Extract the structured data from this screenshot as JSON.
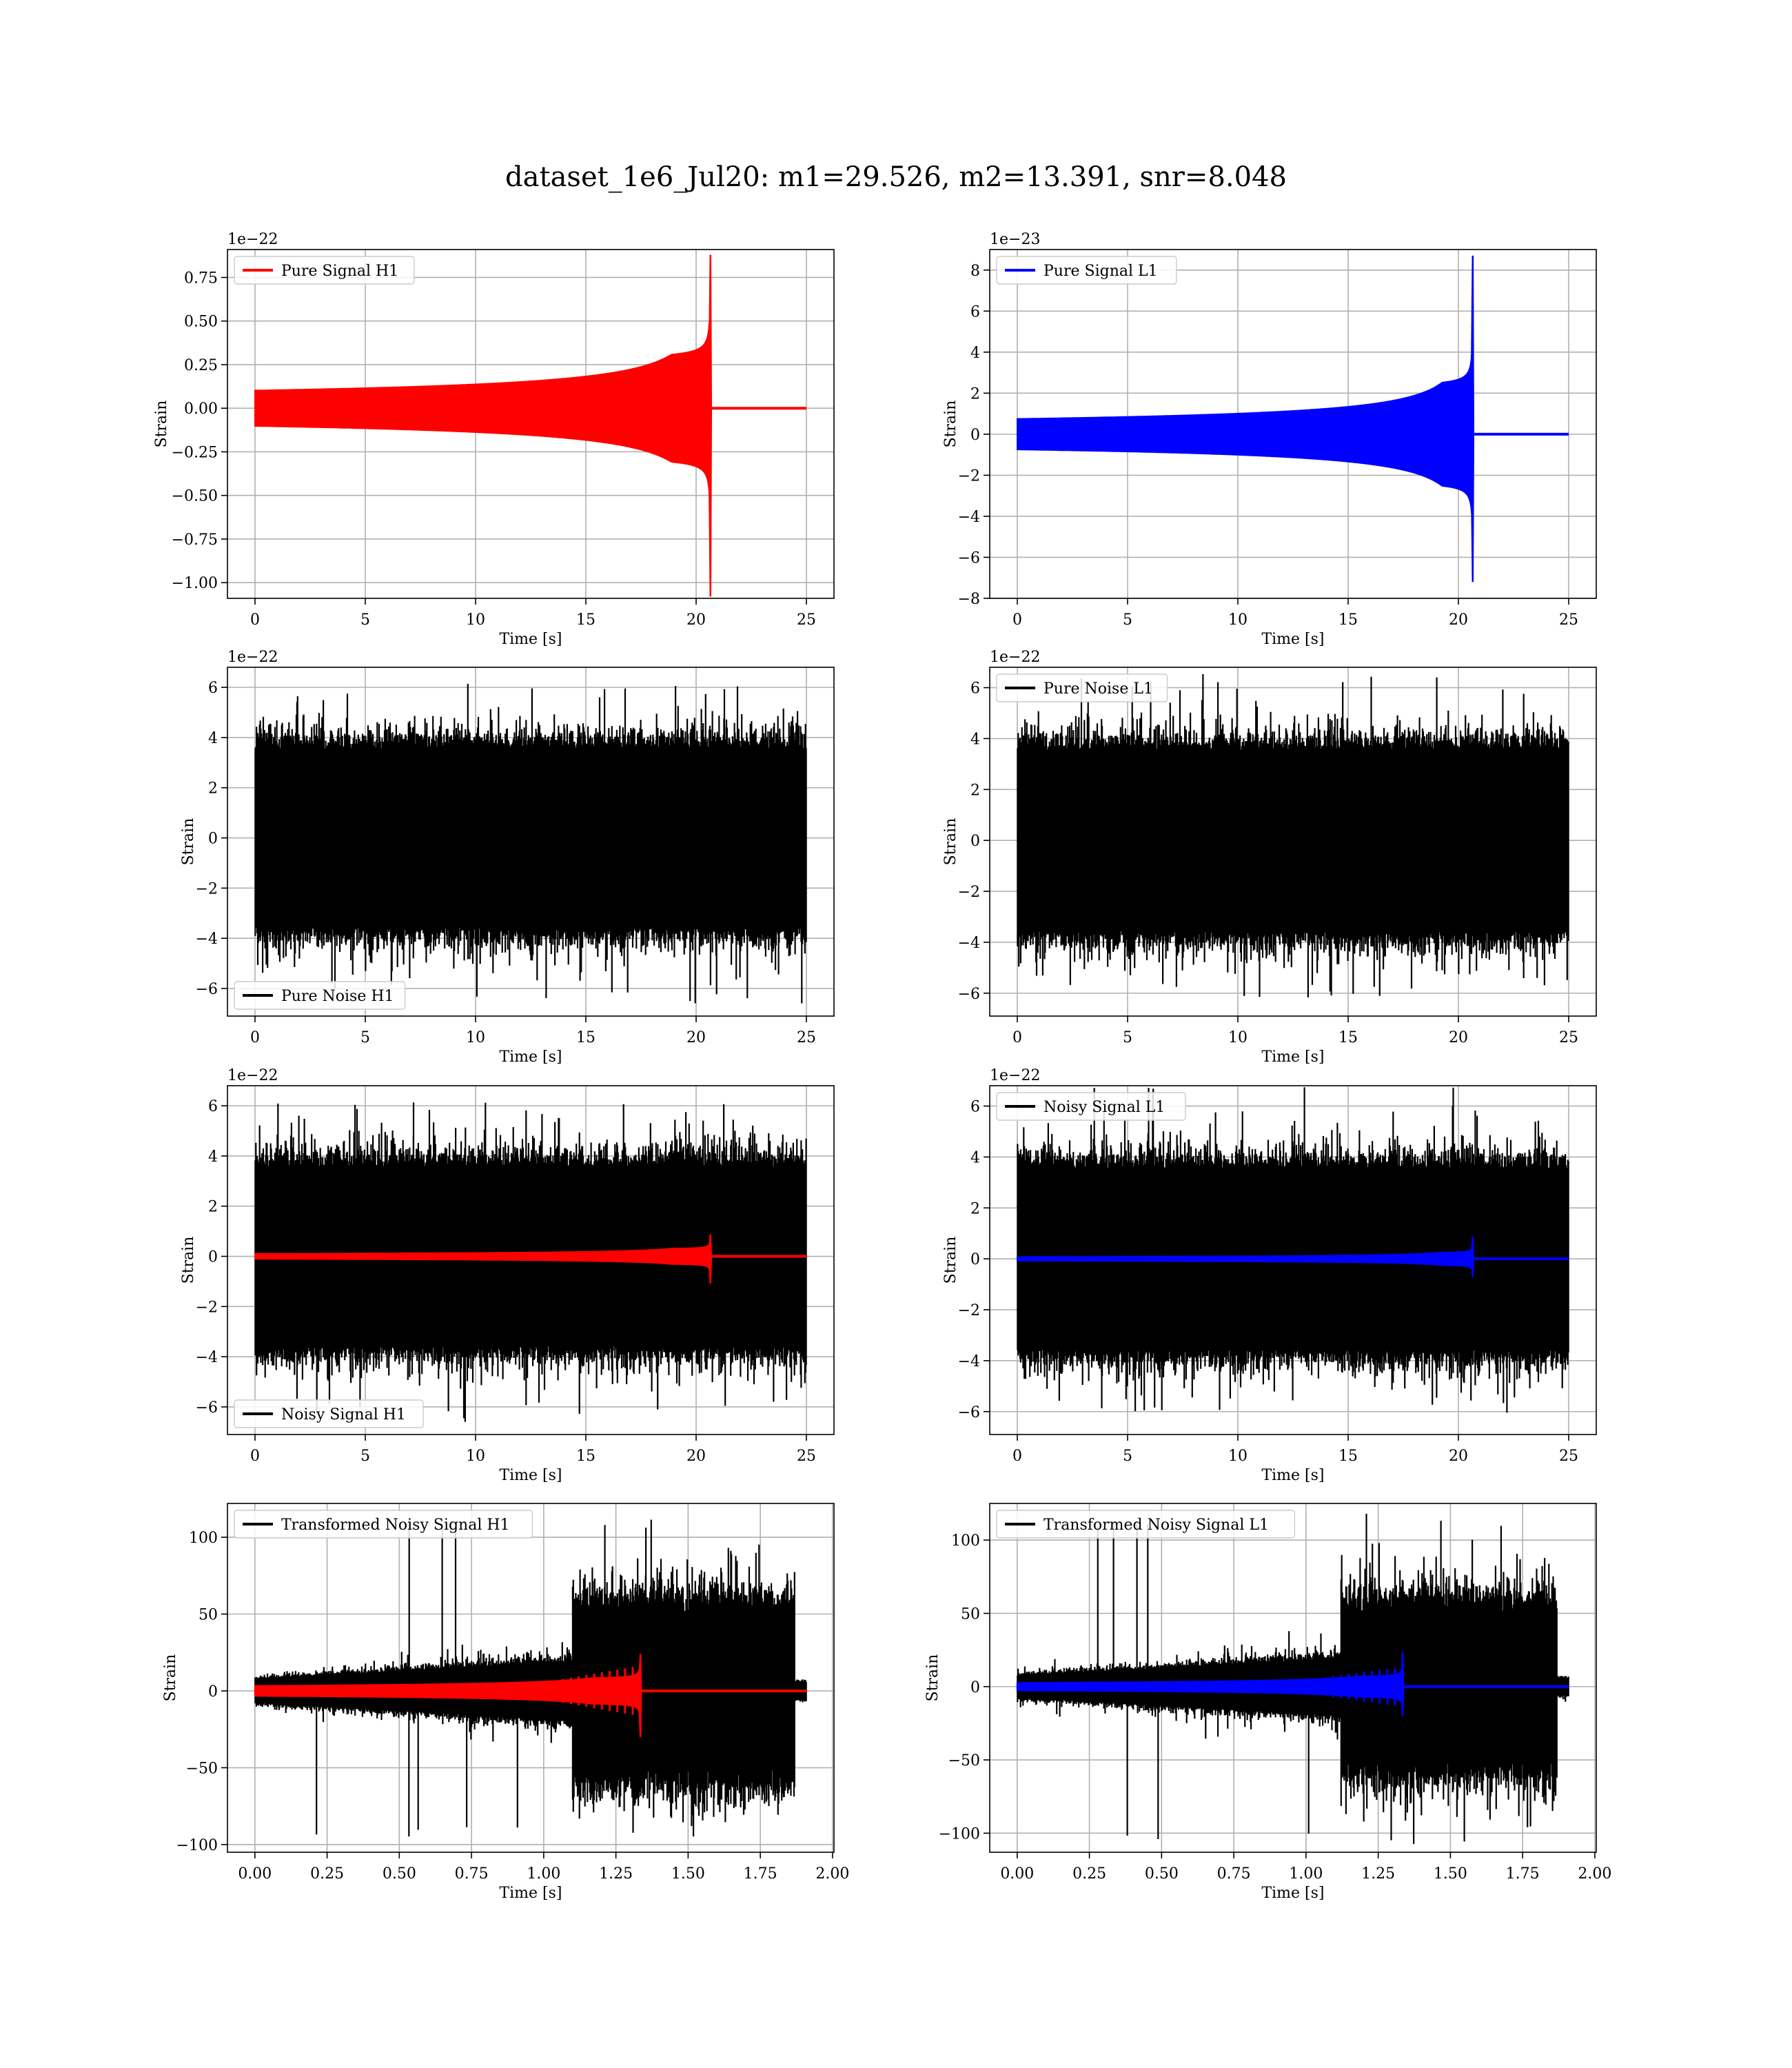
{
  "figure": {
    "title": "dataset_1e6_Jul20: m1=29.526, m2=13.391, snr=8.048"
  },
  "colors": {
    "h1": "#ff0000",
    "l1": "#0000ff",
    "noise": "#000000",
    "grid": "#b0b0b0"
  },
  "chart_data": [
    {
      "id": "pure-signal-h1",
      "type": "line",
      "xlabel": "Time [s]",
      "ylabel": "Strain",
      "offset_text": "1e−22",
      "xlim": [
        -1.25,
        26.25
      ],
      "ylim": [
        -1.09,
        0.91
      ],
      "xticks": [
        0,
        5,
        10,
        15,
        20,
        25
      ],
      "xtick_labels": [
        "0",
        "5",
        "10",
        "15",
        "20",
        "25"
      ],
      "yticks": [
        -1.0,
        -0.75,
        -0.5,
        -0.25,
        0.0,
        0.25,
        0.5,
        0.75
      ],
      "ytick_labels": [
        "−1.00",
        "−0.75",
        "−0.50",
        "−0.25",
        "0.00",
        "0.25",
        "0.50",
        "0.75"
      ],
      "legend": "upper left",
      "grid": true,
      "series": [
        {
          "name": "Pure Signal H1",
          "color": "#ff0000",
          "x_range": [
            0,
            25
          ],
          "merger_time": 20.65,
          "peak": 0.88,
          "trough": -1.08,
          "pre_merger_amp": 0.3
        }
      ]
    },
    {
      "id": "pure-signal-l1",
      "type": "line",
      "xlabel": "Time [s]",
      "ylabel": "Strain",
      "offset_text": "1e−23",
      "xlim": [
        -1.25,
        26.25
      ],
      "ylim": [
        -8,
        9
      ],
      "xticks": [
        0,
        5,
        10,
        15,
        20,
        25
      ],
      "xtick_labels": [
        "0",
        "5",
        "10",
        "15",
        "20",
        "25"
      ],
      "yticks": [
        -8,
        -6,
        -4,
        -2,
        0,
        2,
        4,
        6,
        8
      ],
      "ytick_labels": [
        "−8",
        "−6",
        "−4",
        "−2",
        "0",
        "2",
        "4",
        "6",
        "8"
      ],
      "legend": "upper left",
      "grid": true,
      "series": [
        {
          "name": "Pure Signal L1",
          "color": "#0000ff",
          "x_range": [
            0,
            25
          ],
          "merger_time": 20.65,
          "peak": 8.7,
          "trough": -7.2,
          "pre_merger_amp": 2.2
        }
      ]
    },
    {
      "id": "pure-noise-h1",
      "type": "line",
      "xlabel": "Time [s]",
      "ylabel": "Strain",
      "offset_text": "1e−22",
      "xlim": [
        -1.25,
        26.25
      ],
      "ylim": [
        -7.1,
        6.8
      ],
      "xticks": [
        0,
        5,
        10,
        15,
        20,
        25
      ],
      "xtick_labels": [
        "0",
        "5",
        "10",
        "15",
        "20",
        "25"
      ],
      "yticks": [
        -6,
        -4,
        -2,
        0,
        2,
        4,
        6
      ],
      "ytick_labels": [
        "−6",
        "−4",
        "−2",
        "0",
        "2",
        "4",
        "6"
      ],
      "legend": "lower left",
      "grid": true,
      "series": [
        {
          "name": "Pure Noise H1",
          "color": "#000000",
          "x_range": [
            0,
            25
          ],
          "noise_sigma": 1.45,
          "y_max": 6.2,
          "y_min": -6.6
        }
      ]
    },
    {
      "id": "pure-noise-l1",
      "type": "line",
      "xlabel": "Time [s]",
      "ylabel": "Strain",
      "offset_text": "1e−22",
      "xlim": [
        -1.25,
        26.25
      ],
      "ylim": [
        -6.9,
        6.8
      ],
      "xticks": [
        0,
        5,
        10,
        15,
        20,
        25
      ],
      "xtick_labels": [
        "0",
        "5",
        "10",
        "15",
        "20",
        "25"
      ],
      "yticks": [
        -6,
        -4,
        -2,
        0,
        2,
        4,
        6
      ],
      "ytick_labels": [
        "−6",
        "−4",
        "−2",
        "0",
        "2",
        "4",
        "6"
      ],
      "legend": "upper left",
      "grid": true,
      "series": [
        {
          "name": "Pure Noise L1",
          "color": "#000000",
          "x_range": [
            0,
            25
          ],
          "noise_sigma": 1.45,
          "y_max": 6.6,
          "y_min": -6.2
        }
      ]
    },
    {
      "id": "noisy-signal-h1",
      "type": "line",
      "xlabel": "Time [s]",
      "ylabel": "Strain",
      "offset_text": "1e−22",
      "xlim": [
        -1.25,
        26.25
      ],
      "ylim": [
        -7.1,
        6.8
      ],
      "xticks": [
        0,
        5,
        10,
        15,
        20,
        25
      ],
      "xtick_labels": [
        "0",
        "5",
        "10",
        "15",
        "20",
        "25"
      ],
      "yticks": [
        -6,
        -4,
        -2,
        0,
        2,
        4,
        6
      ],
      "ytick_labels": [
        "−6",
        "−4",
        "−2",
        "0",
        "2",
        "4",
        "6"
      ],
      "legend": "lower left",
      "grid": true,
      "series": [
        {
          "name": "Noisy Signal H1",
          "color": "#000000",
          "x_range": [
            0,
            25
          ],
          "noise_sigma": 1.45,
          "y_max": 6.2,
          "y_min": -6.6
        },
        {
          "name": "",
          "color": "#ff0000",
          "x_range": [
            0,
            25
          ],
          "merger_time": 20.65,
          "peak": 0.88,
          "trough": -1.08,
          "pre_merger_amp": 0.3
        }
      ]
    },
    {
      "id": "noisy-signal-l1",
      "type": "line",
      "xlabel": "Time [s]",
      "ylabel": "Strain",
      "offset_text": "1e−22",
      "xlim": [
        -1.25,
        26.25
      ],
      "ylim": [
        -6.9,
        6.8
      ],
      "xticks": [
        0,
        5,
        10,
        15,
        20,
        25
      ],
      "xtick_labels": [
        "0",
        "5",
        "10",
        "15",
        "20",
        "25"
      ],
      "yticks": [
        -6,
        -4,
        -2,
        0,
        2,
        4,
        6
      ],
      "ytick_labels": [
        "−6",
        "−4",
        "−2",
        "0",
        "2",
        "4",
        "6"
      ],
      "legend": "upper left",
      "grid": true,
      "series": [
        {
          "name": "Noisy Signal L1",
          "color": "#000000",
          "x_range": [
            0,
            25
          ],
          "noise_sigma": 1.45,
          "y_max": 6.8,
          "y_min": -6.2
        },
        {
          "name": "",
          "color": "#0000ff",
          "x_range": [
            0,
            25
          ],
          "merger_time": 20.65,
          "peak": 0.87,
          "trough": -0.72,
          "pre_merger_amp": 0.22
        }
      ]
    },
    {
      "id": "transformed-noisy-signal-h1",
      "type": "line",
      "xlabel": "Time [s]",
      "ylabel": "Strain",
      "offset_text": "",
      "xlim": [
        -0.095,
        2.005
      ],
      "ylim": [
        -105,
        122
      ],
      "xticks": [
        0,
        0.25,
        0.5,
        0.75,
        1.0,
        1.25,
        1.5,
        1.75,
        2.0
      ],
      "xtick_labels": [
        "0.00",
        "0.25",
        "0.50",
        "0.75",
        "1.00",
        "1.25",
        "1.50",
        "1.75",
        "2.00"
      ],
      "yticks": [
        -100,
        -50,
        0,
        50,
        100
      ],
      "ytick_labels": [
        "−100",
        "−50",
        "0",
        "50",
        "100"
      ],
      "legend": "upper left",
      "grid": true,
      "series": [
        {
          "name": "Transformed Noisy Signal H1",
          "color": "#000000",
          "x_range": [
            0,
            1.91
          ],
          "onset": 1.1,
          "end_burst": 1.87,
          "y_max": 113,
          "y_min": -96
        },
        {
          "name": "",
          "color": "#ff0000",
          "x_range": [
            0,
            1.91
          ],
          "merger_time": 1.335,
          "peak": 24,
          "trough": -30
        }
      ]
    },
    {
      "id": "transformed-noisy-signal-l1",
      "type": "line",
      "xlabel": "Time [s]",
      "ylabel": "Strain",
      "offset_text": "",
      "xlim": [
        -0.095,
        2.005
      ],
      "ylim": [
        -113,
        125
      ],
      "xticks": [
        0,
        0.25,
        0.5,
        0.75,
        1.0,
        1.25,
        1.5,
        1.75,
        2.0
      ],
      "xtick_labels": [
        "0.00",
        "0.25",
        "0.50",
        "0.75",
        "1.00",
        "1.25",
        "1.50",
        "1.75",
        "2.00"
      ],
      "yticks": [
        -100,
        -50,
        0,
        50,
        100
      ],
      "ytick_labels": [
        "−100",
        "−50",
        "0",
        "50",
        "100"
      ],
      "legend": "upper left",
      "grid": true,
      "series": [
        {
          "name": "Transformed Noisy Signal L1",
          "color": "#000000",
          "x_range": [
            0,
            1.91
          ],
          "onset": 1.12,
          "end_burst": 1.87,
          "y_max": 118,
          "y_min": -108
        },
        {
          "name": "",
          "color": "#0000ff",
          "x_range": [
            0,
            1.91
          ],
          "merger_time": 1.335,
          "peak": 24,
          "trough": -20
        }
      ]
    }
  ]
}
